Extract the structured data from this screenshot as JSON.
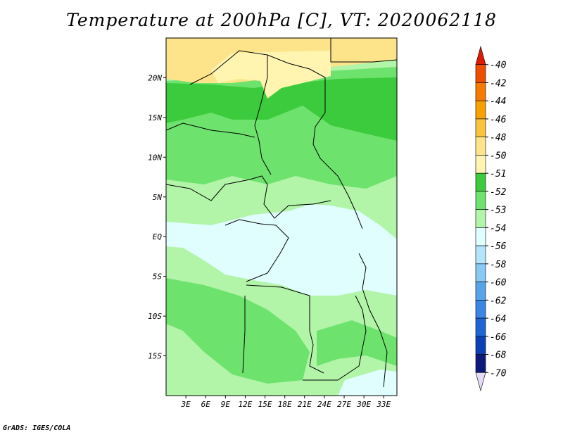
{
  "title": "Temperature at 200hPa [C], VT: 2020062118",
  "credit": "GrADS: IGES/COLA",
  "map": {
    "lon_range": [
      0,
      35
    ],
    "lat_range": [
      -20,
      25
    ],
    "lat_ticks": [
      {
        "lat": 20,
        "label": "20N"
      },
      {
        "lat": 15,
        "label": "15N"
      },
      {
        "lat": 10,
        "label": "10N"
      },
      {
        "lat": 5,
        "label": "5N"
      },
      {
        "lat": 0,
        "label": "EQ"
      },
      {
        "lat": -5,
        "label": "5S"
      },
      {
        "lat": -10,
        "label": "10S"
      },
      {
        "lat": -15,
        "label": "15S"
      }
    ],
    "lon_ticks": [
      {
        "lon": 3,
        "label": "3E"
      },
      {
        "lon": 6,
        "label": "6E"
      },
      {
        "lon": 9,
        "label": "9E"
      },
      {
        "lon": 12,
        "label": "12E"
      },
      {
        "lon": 15,
        "label": "15E"
      },
      {
        "lon": 18,
        "label": "18E"
      },
      {
        "lon": 21,
        "label": "21E"
      },
      {
        "lon": 24,
        "label": "24E"
      },
      {
        "lon": 27,
        "label": "27E"
      },
      {
        "lon": 30,
        "label": "30E"
      },
      {
        "lon": 33,
        "label": "33E"
      }
    ]
  },
  "legend": {
    "labels": [
      "-40",
      "-42",
      "-44",
      "-46",
      "-48",
      "-50",
      "-51",
      "-52",
      "-53",
      "-54",
      "-56",
      "-58",
      "-60",
      "-62",
      "-64",
      "-66",
      "-68",
      "-70"
    ],
    "colors": [
      "#e01a00",
      "#ef4c00",
      "#f67a00",
      "#f9a000",
      "#fbc33b",
      "#fde48a",
      "#fff5b0",
      "#3ccb3c",
      "#6de26d",
      "#b2f4a8",
      "#e0fefe",
      "#b4e4fb",
      "#8ac8f5",
      "#58a4eb",
      "#3a86e3",
      "#1f63d4",
      "#0b3fb3",
      "#0b1a7a",
      "#e6dcf5"
    ]
  }
}
